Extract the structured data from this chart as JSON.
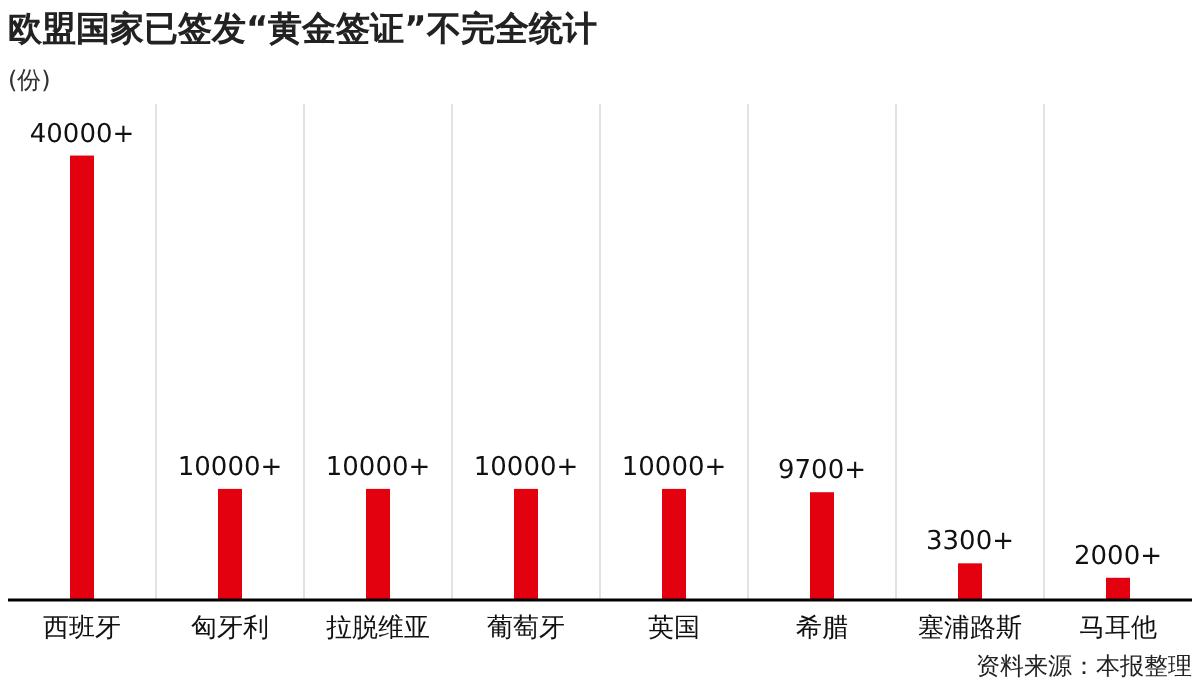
{
  "chart_data": {
    "type": "bar",
    "title": "欧盟国家已签发“黄金签证”不完全统计",
    "ylabel": "(份)",
    "categories": [
      "西班牙",
      "匈牙利",
      "拉脱维亚",
      "葡萄牙",
      "英国",
      "希腊",
      "塞浦路斯",
      "马耳他"
    ],
    "values": [
      40000,
      10000,
      10000,
      10000,
      10000,
      9700,
      3300,
      2000
    ],
    "value_labels": [
      "40000+",
      "10000+",
      "10000+",
      "10000+",
      "10000+",
      "9700+",
      "3300+",
      "2000+"
    ],
    "color": "#e3000f",
    "grid": "x",
    "annotations": [
      "资料来源：本报整理"
    ]
  }
}
